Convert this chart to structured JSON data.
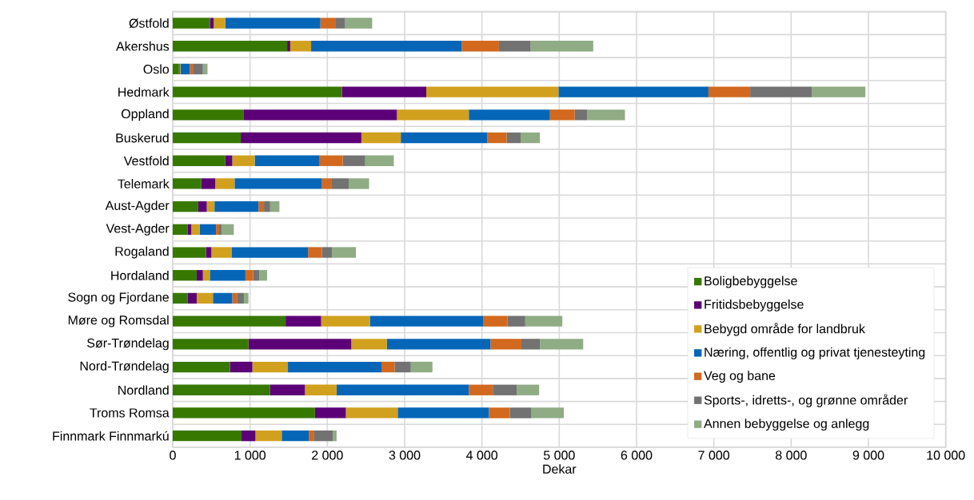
{
  "chart_data": {
    "type": "bar",
    "orientation": "horizontal",
    "stacked": true,
    "xlabel": "Dekar",
    "grid": true,
    "legend": "bottom right",
    "categories": [
      "Østfold",
      "Akershus",
      "Oslo",
      "Hedmark",
      "Oppland",
      "Buskerud",
      "Vestfold",
      "Telemark",
      "Aust-Agder",
      "Vest-Agder",
      "Rogaland",
      "Hordaland",
      "Sogn og Fjordane",
      "Møre og Romsdal",
      "Sør-Trøndelag",
      "Nord-Trøndelag",
      "Nordland",
      "Troms Romsa",
      "Finnmark Finnmarkú"
    ],
    "xlim": [
      0,
      10000
    ],
    "xticks": [
      0,
      {
        "value": 1000,
        "label": "1 000"
      },
      {
        "value": 2000,
        "label": "2 000"
      },
      {
        "value": 3000,
        "label": "3 000"
      },
      {
        "value": 4000,
        "label": "4 000"
      },
      {
        "value": 5000,
        "label": "5 000"
      },
      {
        "value": 6000,
        "label": "6 000"
      },
      {
        "value": 7000,
        "label": "7 000"
      },
      {
        "value": 8000,
        "label": "8 000"
      },
      {
        "value": 9000,
        "label": "9 000"
      },
      {
        "value": 10000,
        "label": "10 000"
      }
    ],
    "series": [
      {
        "name": "Boligbebyggelse",
        "color": "#377800",
        "values": [
          480,
          1480,
          80,
          2190,
          920,
          880,
          680,
          370,
          330,
          190,
          430,
          310,
          190,
          1460,
          980,
          740,
          1260,
          1840,
          890
        ]
      },
      {
        "name": "Fritidsbebyggelse",
        "color": "#5c0077",
        "values": [
          50,
          40,
          10,
          1090,
          1980,
          1560,
          90,
          180,
          110,
          50,
          70,
          80,
          120,
          460,
          1330,
          290,
          450,
          400,
          180
        ]
      },
      {
        "name": "Bebygd område for landbruk",
        "color": "#d1a01e",
        "values": [
          150,
          270,
          10,
          1710,
          930,
          510,
          290,
          250,
          100,
          110,
          260,
          90,
          210,
          630,
          460,
          460,
          410,
          670,
          340
        ]
      },
      {
        "name": "Næring, offentlig og privat tjenesteyting",
        "color": "#0566b8",
        "values": [
          1230,
          1950,
          120,
          1940,
          1050,
          1120,
          840,
          1130,
          570,
          210,
          990,
          460,
          250,
          1470,
          1340,
          1210,
          1710,
          1180,
          350
        ]
      },
      {
        "name": "Veg og bane",
        "color": "#d2691e",
        "values": [
          200,
          480,
          40,
          540,
          320,
          250,
          300,
          120,
          70,
          40,
          180,
          100,
          60,
          310,
          400,
          170,
          310,
          270,
          70
        ]
      },
      {
        "name": "Sports-, idretts-, og grønne områder",
        "color": "#727272",
        "values": [
          120,
          410,
          130,
          800,
          160,
          180,
          290,
          230,
          80,
          30,
          130,
          80,
          90,
          230,
          240,
          210,
          310,
          280,
          240
        ]
      },
      {
        "name": "Annen bebyggelse og anlegg",
        "color": "#8fac84",
        "values": [
          350,
          810,
          60,
          690,
          490,
          250,
          370,
          260,
          120,
          160,
          310,
          100,
          60,
          480,
          560,
          280,
          290,
          420,
          50
        ]
      }
    ]
  }
}
